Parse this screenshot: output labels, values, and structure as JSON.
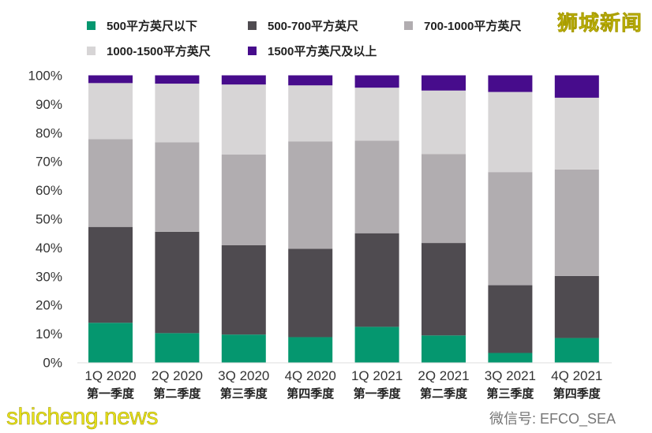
{
  "chart_data": {
    "type": "bar",
    "stacked": true,
    "percent": true,
    "categories": [
      "1Q 2020",
      "2Q 2020",
      "3Q 2020",
      "4Q 2020",
      "1Q 2021",
      "2Q 2021",
      "3Q 2021",
      "4Q 2021"
    ],
    "categories_cn": [
      "第一季度",
      "第二季度",
      "第三季度",
      "第四季度",
      "第一季度",
      "第二季度",
      "第三季度",
      "第四季度"
    ],
    "series": [
      {
        "name": "500平方英尺以下",
        "color": "#05976f",
        "values": [
          13.8,
          10.2,
          9.7,
          8.8,
          12.4,
          9.4,
          3.3,
          8.5
        ]
      },
      {
        "name": "500-700平方英尺",
        "color": "#4f4b50",
        "values": [
          33.4,
          35.3,
          31.1,
          30.8,
          32.6,
          32.2,
          23.6,
          21.6
        ]
      },
      {
        "name": "700-1000平方英尺",
        "color": "#b1adb0",
        "values": [
          30.6,
          31.2,
          31.6,
          37.4,
          32.2,
          31.0,
          39.4,
          37.1
        ]
      },
      {
        "name": "1000-1500平方英尺",
        "color": "#d7d5d6",
        "values": [
          19.5,
          20.4,
          24.4,
          19.5,
          18.5,
          22.1,
          27.9,
          25.0
        ]
      },
      {
        "name": "1500平方英尺及以上",
        "color": "#470c8c",
        "values": [
          2.7,
          2.9,
          3.2,
          3.5,
          4.3,
          5.3,
          5.8,
          7.8
        ]
      }
    ],
    "yticks": [
      "0%",
      "10%",
      "20%",
      "30%",
      "40%",
      "50%",
      "60%",
      "70%",
      "80%",
      "90%",
      "100%"
    ],
    "ylim": [
      0,
      100
    ],
    "grid": false,
    "legend_placement": "top"
  },
  "watermarks": {
    "top_right": "狮城新闻",
    "bottom_left": "shicheng.news",
    "bottom_right": "微信号: EFCO_SEA"
  }
}
